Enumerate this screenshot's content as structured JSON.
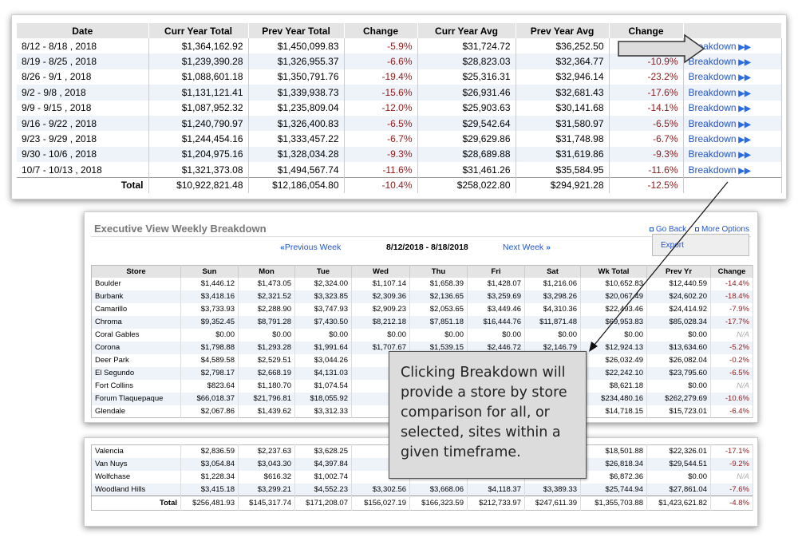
{
  "summary": {
    "headers": [
      "Date",
      "Curr Year Total",
      "Prev Year Total",
      "Change",
      "Curr Year Avg",
      "Prev Year Avg",
      "Change",
      ""
    ],
    "rows": [
      [
        "8/12 - 8/18 , 2018",
        "$1,364,162.92",
        "$1,450,099.83",
        "-5.9%",
        "$31,724.72",
        "$36,252.50",
        "",
        "Breakdown"
      ],
      [
        "8/19 - 8/25 , 2018",
        "$1,239,390.28",
        "$1,326,955.37",
        "-6.6%",
        "$28,823.03",
        "$32,364.77",
        "-10.9%",
        "Breakdown"
      ],
      [
        "8/26 - 9/1 , 2018",
        "$1,088,601.18",
        "$1,350,791.76",
        "-19.4%",
        "$25,316.31",
        "$32,946.14",
        "-23.2%",
        "Breakdown"
      ],
      [
        "9/2 - 9/8 , 2018",
        "$1,131,121.41",
        "$1,339,938.73",
        "-15.6%",
        "$26,931.46",
        "$32,681.43",
        "-17.6%",
        "Breakdown"
      ],
      [
        "9/9 - 9/15 , 2018",
        "$1,087,952.32",
        "$1,235,809.04",
        "-12.0%",
        "$25,903.63",
        "$30,141.68",
        "-14.1%",
        "Breakdown"
      ],
      [
        "9/16 - 9/22 , 2018",
        "$1,240,790.97",
        "$1,326,400.83",
        "-6.5%",
        "$29,542.64",
        "$31,580.97",
        "-6.5%",
        "Breakdown"
      ],
      [
        "9/23 - 9/29 , 2018",
        "$1,244,454.16",
        "$1,333,457.22",
        "-6.7%",
        "$29,629.86",
        "$31,748.98",
        "-6.7%",
        "Breakdown"
      ],
      [
        "9/30 - 10/6 , 2018",
        "$1,204,975.16",
        "$1,328,034.28",
        "-9.3%",
        "$28,689.88",
        "$31,619.86",
        "-9.3%",
        "Breakdown"
      ],
      [
        "10/7 - 10/13 , 2018",
        "$1,321,373.08",
        "$1,494,567.74",
        "-11.6%",
        "$31,461.26",
        "$35,584.95",
        "-11.6%",
        "Breakdown"
      ]
    ],
    "total": [
      "Total",
      "$10,922,821.48",
      "$12,186,054.80",
      "-10.4%",
      "$258,022.80",
      "$294,921.28",
      "-12.5%",
      ""
    ]
  },
  "weekly": {
    "title": "Executive View Weekly Breakdown",
    "go_back": "Go Back",
    "more_options": "More Options",
    "export": "Export",
    "prev_week": "Previous Week",
    "next_week": "Next Week",
    "date_range": "8/12/2018 - 8/18/2018",
    "headers": [
      "Store",
      "Sun",
      "Mon",
      "Tue",
      "Wed",
      "Thu",
      "Fri",
      "Sat",
      "Wk Total",
      "Prev Yr",
      "Change"
    ],
    "rows": [
      [
        "Boulder",
        "$1,446.12",
        "$1,473.05",
        "$2,324.00",
        "$1,107.14",
        "$1,658.39",
        "$1,428.07",
        "$1,216.06",
        "$10,652.83",
        "$12,440.59",
        "-14.4%"
      ],
      [
        "Burbank",
        "$3,418.16",
        "$2,321.52",
        "$3,323.85",
        "$2,309.36",
        "$2,136.65",
        "$3,259.69",
        "$3,298.26",
        "$20,067.49",
        "$24,602.20",
        "-18.4%"
      ],
      [
        "Camarillo",
        "$3,733.93",
        "$2,288.90",
        "$3,747.93",
        "$2,909.23",
        "$2,053.65",
        "$3,449.46",
        "$4,310.36",
        "$22,493.46",
        "$24,414.92",
        "-7.9%"
      ],
      [
        "Chroma",
        "$9,352.45",
        "$8,791.28",
        "$7,430.50",
        "$8,212.18",
        "$7,851.18",
        "$16,444.76",
        "$11,871.48",
        "$69,953.83",
        "$85,028.34",
        "-17.7%"
      ],
      [
        "Coral Gables",
        "$0.00",
        "$0.00",
        "$0.00",
        "$0.00",
        "$0.00",
        "$0.00",
        "$0.00",
        "$0.00",
        "$0.00",
        "N/A"
      ],
      [
        "Corona",
        "$1,798.88",
        "$1,293.28",
        "$1,991.64",
        "$1,707.67",
        "$1,539.15",
        "$2,446.72",
        "$2,146.79",
        "$12,924.13",
        "$13,634.60",
        "-5.2%"
      ],
      [
        "Deer Park",
        "$4,589.58",
        "$2,529.51",
        "$3,044.26",
        "",
        "",
        "",
        "",
        "$26,032.49",
        "$26,082.04",
        "-0.2%"
      ],
      [
        "El Segundo",
        "$2,798.17",
        "$2,668.19",
        "$4,131.03",
        "",
        "",
        "",
        "",
        "$22,242.10",
        "$23,795.60",
        "-6.5%"
      ],
      [
        "Fort Collins",
        "$823.64",
        "$1,180.70",
        "$1,074.54",
        "",
        "",
        "",
        "",
        "$8,621.18",
        "$0.00",
        "N/A"
      ],
      [
        "Forum Tlaquepaque",
        "$66,018.37",
        "$21,796.81",
        "$18,055.92",
        "",
        "",
        "",
        "",
        "$234,480.16",
        "$262,279.69",
        "-10.6%"
      ],
      [
        "Glendale",
        "$2,067.86",
        "$1,439.62",
        "$3,312.33",
        "",
        "",
        "",
        "",
        "$14,718.15",
        "$15,723.01",
        "-6.4%"
      ]
    ],
    "rows2": [
      [
        "Valencia",
        "$2,836.59",
        "$2,237.63",
        "$3,628.25",
        "",
        "",
        "",
        "",
        "$18,501.88",
        "$22,326.01",
        "-17.1%"
      ],
      [
        "Van Nuys",
        "$3,054.84",
        "$3,043.30",
        "$4,397.84",
        "",
        "",
        "",
        "",
        "$26,818.34",
        "$29,544.51",
        "-9.2%"
      ],
      [
        "Wolfchase",
        "$1,228.34",
        "$616.32",
        "$1,002.74",
        "",
        "",
        "",
        "",
        "$6,872.36",
        "$0.00",
        "N/A"
      ],
      [
        "Woodland Hills",
        "$3,415.18",
        "$3,299.21",
        "$4,552.23",
        "$3,302.56",
        "$3,668.06",
        "$4,118.37",
        "$3,389.33",
        "$25,744.94",
        "$27,861.04",
        "-7.6%"
      ]
    ],
    "total": [
      "Total",
      "$256,481.93",
      "$145,317.74",
      "$171,208.07",
      "$156,027.19",
      "$166,323.59",
      "$212,733.97",
      "$247,611.39",
      "$1,355,703.88",
      "$1,423,621.82",
      "-4.8%"
    ]
  },
  "callout": "Clicking Breakdown will provide a store by store comparison for all, or selected, sites within a given timeframe."
}
